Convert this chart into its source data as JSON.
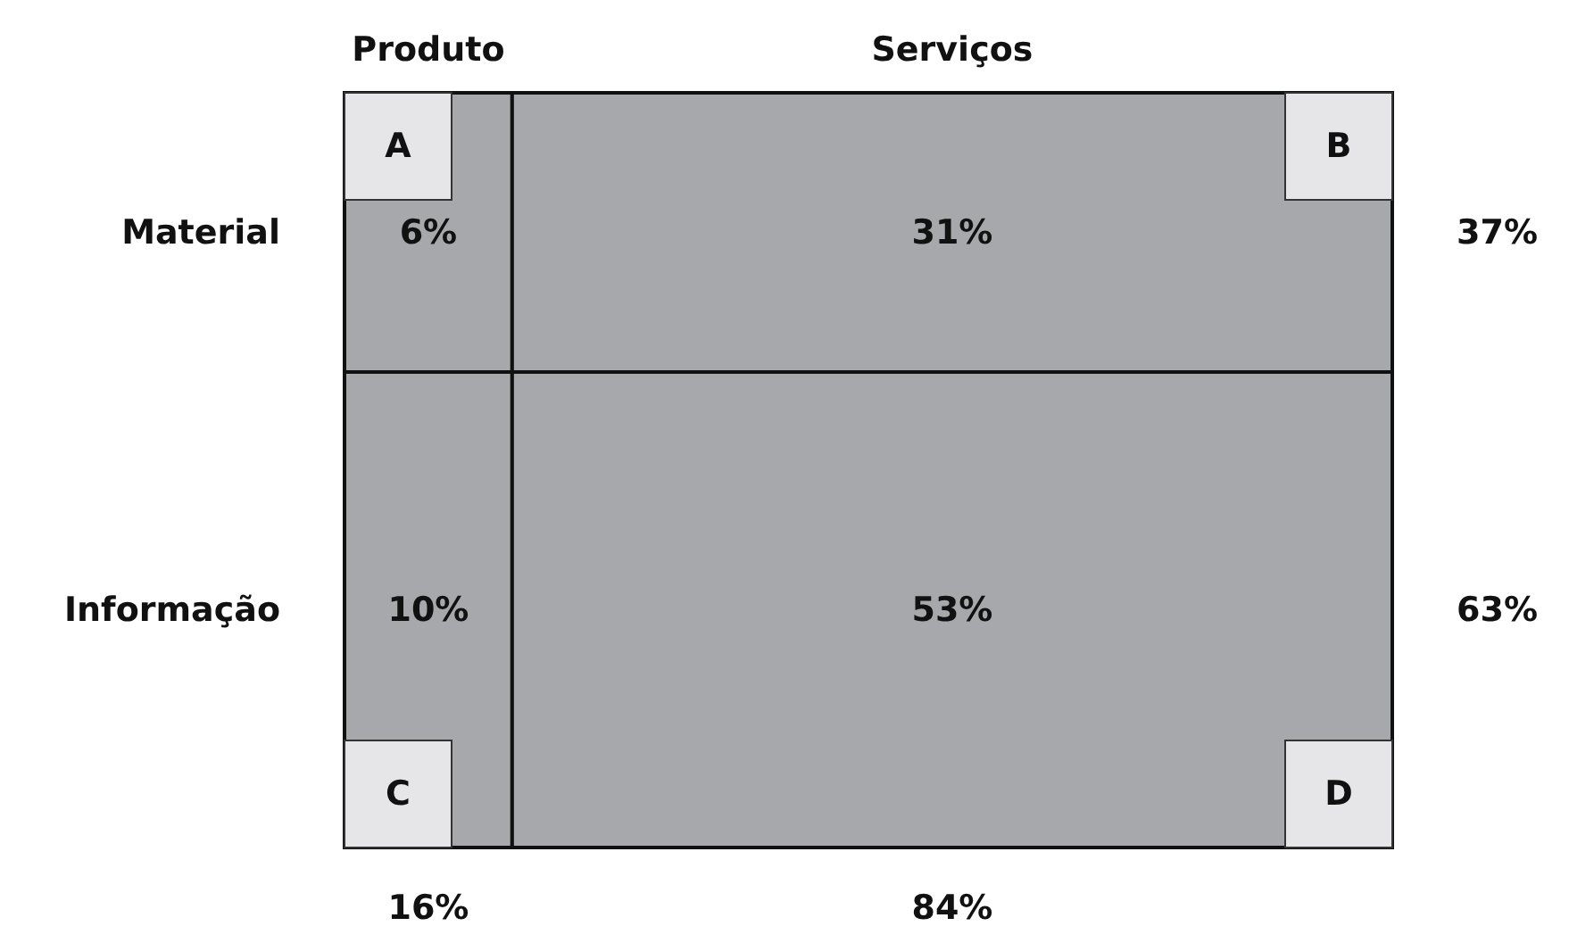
{
  "chart_data": {
    "type": "heatmap",
    "categories": [
      "Produto",
      "Serviços"
    ],
    "y_categories": [
      "Material",
      "Informação"
    ],
    "y2_categories": [
      "37%",
      "63%"
    ],
    "cells": [
      [
        6,
        31
      ],
      [
        10,
        53
      ]
    ],
    "cell_labels": [
      [
        "6%",
        "31%"
      ],
      [
        "10%",
        "53%"
      ]
    ],
    "color": "#a7a8ab",
    "annotations": [
      "A",
      "B",
      "C",
      "D",
      "16%",
      "84%"
    ]
  }
}
